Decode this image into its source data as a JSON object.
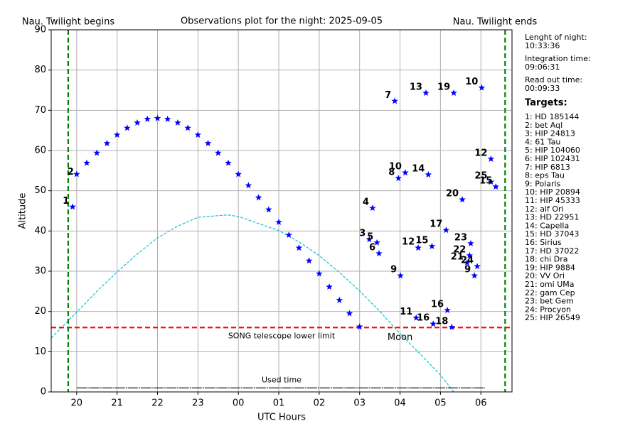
{
  "chart_data": {
    "type": "scatter",
    "title": "Observations plot for the night: 2025-09-05",
    "xlabel": "UTC Hours",
    "ylabel": "Altitude",
    "xlim": [
      19.37,
      30.77
    ],
    "ylim": [
      0,
      90
    ],
    "xticks": [
      20,
      21,
      22,
      23,
      {
        "value": 24,
        "label": "00"
      },
      {
        "value": 25,
        "label": "01"
      },
      {
        "value": 26,
        "label": "02"
      },
      {
        "value": 27,
        "label": "03"
      },
      {
        "value": 28,
        "label": "04"
      },
      {
        "value": 29,
        "label": "05"
      },
      {
        "value": 30,
        "label": "06"
      }
    ],
    "yticks": [
      0,
      10,
      20,
      30,
      40,
      50,
      60,
      70,
      80,
      90
    ],
    "grid": true,
    "color": "#0000ff",
    "track": {
      "label": "2",
      "x": [
        20.0,
        20.25,
        20.5,
        20.75,
        21.0,
        21.25,
        21.5,
        21.75,
        22.0,
        22.25,
        22.5,
        22.75,
        23.0,
        23.25,
        23.5,
        23.75,
        24.0,
        24.25,
        24.5,
        24.75,
        25.0,
        25.25,
        25.5,
        25.75,
        26.0,
        26.25,
        26.5,
        26.75,
        27.0
      ],
      "values": [
        54.1,
        56.9,
        59.4,
        61.8,
        63.9,
        65.6,
        66.9,
        67.8,
        68.0,
        67.8,
        66.9,
        65.6,
        63.9,
        61.8,
        59.4,
        56.9,
        54.1,
        51.3,
        48.3,
        45.3,
        42.2,
        39.0,
        35.8,
        32.6,
        29.4,
        26.1,
        22.8,
        19.5,
        16.2
      ]
    },
    "points": {
      "labels": [
        "1",
        "7",
        "13",
        "19",
        "10",
        "12",
        "25",
        "15",
        "10",
        "8",
        "14",
        "4",
        "20",
        "17",
        "3",
        "5",
        "6",
        "12",
        "15",
        "23",
        "22",
        "21",
        "24",
        "9",
        "9",
        "11",
        "16",
        "16",
        "18"
      ],
      "x": [
        19.9,
        27.87,
        28.64,
        29.33,
        30.02,
        30.25,
        30.25,
        30.37,
        28.13,
        27.96,
        28.7,
        27.32,
        29.54,
        29.14,
        27.24,
        27.43,
        27.48,
        28.45,
        28.79,
        29.75,
        29.72,
        29.66,
        29.91,
        29.84,
        28.01,
        28.4,
        29.17,
        28.82,
        29.28
      ],
      "values": [
        46.0,
        72.3,
        74.3,
        74.3,
        75.6,
        57.9,
        52.2,
        51.0,
        54.5,
        53.1,
        54.0,
        45.7,
        47.8,
        40.2,
        37.9,
        37.1,
        34.4,
        35.8,
        36.2,
        36.9,
        33.9,
        32.1,
        31.2,
        28.9,
        28.9,
        18.4,
        20.3,
        16.9,
        16.1
      ]
    },
    "moon": {
      "label": "Moon",
      "x": [
        19.37,
        20.0,
        20.5,
        21.0,
        21.5,
        22.0,
        22.5,
        23.0,
        23.73,
        24.0,
        25.0,
        25.5,
        26.0,
        26.5,
        27.0,
        27.5,
        28.0,
        28.5,
        29.0,
        29.33
      ],
      "values": [
        13.4,
        19.8,
        25.0,
        29.8,
        34.3,
        38.3,
        41.2,
        43.4,
        44.0,
        43.6,
        40.1,
        37.3,
        33.9,
        29.7,
        25.1,
        20.0,
        14.5,
        9.4,
        4.2,
        0
      ]
    },
    "lower_limit": {
      "label": "SONG telescope lower limit",
      "value": 16
    },
    "used_time": {
      "label": "Used time",
      "x": [
        20.0,
        30.1
      ],
      "value": 1
    },
    "twilight_begins": {
      "label": "Nau. Twilight begins",
      "x": 19.79
    },
    "twilight_ends": {
      "label": "Nau. Twilight ends",
      "x": 30.6
    },
    "info": [
      {
        "label": "Lenght of night:",
        "value": "10:33:36"
      },
      {
        "label": "Integration time:",
        "value": "09:06:31"
      },
      {
        "label": "Read out time:",
        "value": "00:09:33"
      }
    ],
    "targets_title": "Targets:",
    "targets": [
      "1: HD 185144",
      "2: bet Aql",
      "3: HIP 24813",
      "4: 61 Tau",
      "5: HIP 104060",
      "6: HIP 102431",
      "7: HIP 6813",
      "8: eps Tau",
      "9: Polaris",
      "10: HIP 20894",
      "11: HIP 45333",
      "12: alf Ori",
      "13: HD 22951",
      "14: Capella",
      "15: HD 37043",
      "16: Sirius",
      "17: HD 37022",
      "18: chi Dra",
      "19: HIP 9884",
      "20: VV Ori",
      "21: omi UMa",
      "22: gam Cep",
      "23: bet Gem",
      "24: Procyon",
      "25: HIP 26549"
    ]
  }
}
